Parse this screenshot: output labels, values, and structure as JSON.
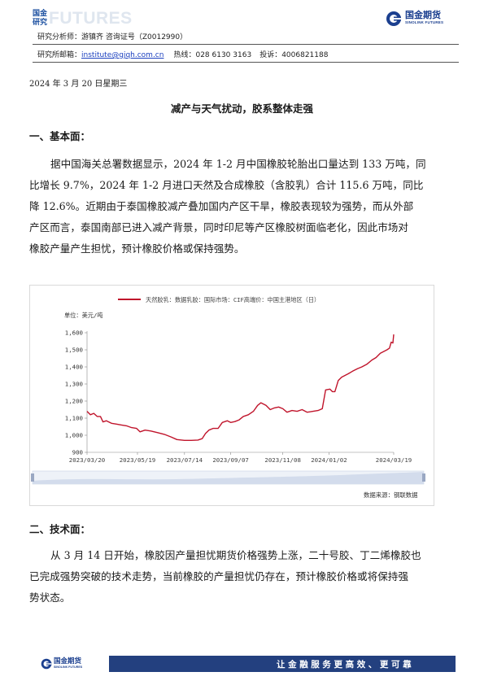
{
  "header": {
    "left_logo_cn": "国金研究",
    "left_logo_en": "FUTURES",
    "right_logo_cn": "国金期货",
    "right_logo_en": "SINOLINK FUTURES",
    "analyst": "研究分析师：游镇齐 咨询证号（Z0012990）",
    "contact_label": "研究所邮箱：",
    "email": "institute@gjqh.com.cn",
    "hotline": "热线：028 6130 3163",
    "complaint": "投诉：4006821188"
  },
  "report_date": "2024 年 3 月 20 日星期三",
  "title": "减产与天气扰动，胶系整体走强",
  "section1": {
    "heading": "一、基本面：",
    "lines": [
      "据中国海关总署数据显示，2024 年 1-2 月中国橡胶轮胎出口量达到 133 万吨，同",
      "比增长 9.7%，2024 年 1-2 月进口天然及合成橡胶（含胶乳）合计 115.6 万吨，同比",
      "降 12.6%。近期由于泰国橡胶减产叠加国内产区干旱，橡胶表现较为强势，而从外部",
      "产区而言，泰国南部已进入减产背景，同时印尼等产区橡胶树面临老化，因此市场对",
      "橡胶产量产生担忧，预计橡胶价格或保持强势。"
    ]
  },
  "chart_data": {
    "type": "line",
    "series": [
      {
        "name": "天然胶乳：数据乳胶：国际市场：CIF高端价：中国主港地区（日）",
        "color": "#c0142b",
        "points": [
          [
            "2023-03-20",
            1140
          ],
          [
            "2023-03-24",
            1120
          ],
          [
            "2023-03-28",
            1128
          ],
          [
            "2023-04-01",
            1110
          ],
          [
            "2023-04-05",
            1110
          ],
          [
            "2023-04-08",
            1078
          ],
          [
            "2023-04-12",
            1085
          ],
          [
            "2023-04-18",
            1070
          ],
          [
            "2023-04-24",
            1065
          ],
          [
            "2023-04-30",
            1060
          ],
          [
            "2023-05-06",
            1055
          ],
          [
            "2023-05-12",
            1045
          ],
          [
            "2023-05-18",
            1040
          ],
          [
            "2023-05-22",
            1020
          ],
          [
            "2023-05-28",
            1030
          ],
          [
            "2023-06-04",
            1025
          ],
          [
            "2023-06-12",
            1015
          ],
          [
            "2023-06-20",
            1005
          ],
          [
            "2023-06-28",
            990
          ],
          [
            "2023-07-05",
            975
          ],
          [
            "2023-07-14",
            970
          ],
          [
            "2023-07-22",
            970
          ],
          [
            "2023-07-30",
            972
          ],
          [
            "2023-08-04",
            980
          ],
          [
            "2023-08-08",
            1010
          ],
          [
            "2023-08-12",
            1030
          ],
          [
            "2023-08-17",
            1040
          ],
          [
            "2023-08-23",
            1040
          ],
          [
            "2023-08-28",
            1075
          ],
          [
            "2023-09-03",
            1085
          ],
          [
            "2023-09-07",
            1075
          ],
          [
            "2023-09-12",
            1080
          ],
          [
            "2023-09-17",
            1090
          ],
          [
            "2023-09-22",
            1110
          ],
          [
            "2023-09-28",
            1120
          ],
          [
            "2023-10-04",
            1140
          ],
          [
            "2023-10-09",
            1175
          ],
          [
            "2023-10-13",
            1190
          ],
          [
            "2023-10-19",
            1175
          ],
          [
            "2023-10-24",
            1150
          ],
          [
            "2023-10-29",
            1160
          ],
          [
            "2023-11-03",
            1165
          ],
          [
            "2023-11-08",
            1155
          ],
          [
            "2023-11-13",
            1135
          ],
          [
            "2023-11-19",
            1145
          ],
          [
            "2023-11-25",
            1140
          ],
          [
            "2023-12-01",
            1150
          ],
          [
            "2023-12-07",
            1135
          ],
          [
            "2023-12-14",
            1140
          ],
          [
            "2023-12-20",
            1145
          ],
          [
            "2023-12-25",
            1155
          ],
          [
            "2023-12-29",
            1265
          ],
          [
            "2024-01-03",
            1270
          ],
          [
            "2024-01-06",
            1255
          ],
          [
            "2024-01-09",
            1255
          ],
          [
            "2024-01-13",
            1320
          ],
          [
            "2024-01-17",
            1340
          ],
          [
            "2024-01-21",
            1350
          ],
          [
            "2024-01-25",
            1360
          ],
          [
            "2024-01-30",
            1375
          ],
          [
            "2024-02-05",
            1390
          ],
          [
            "2024-02-10",
            1400
          ],
          [
            "2024-02-16",
            1415
          ],
          [
            "2024-02-22",
            1440
          ],
          [
            "2024-02-27",
            1455
          ],
          [
            "2024-03-03",
            1480
          ],
          [
            "2024-03-07",
            1490
          ],
          [
            "2024-03-11",
            1500
          ],
          [
            "2024-03-14",
            1510
          ],
          [
            "2024-03-16",
            1545
          ],
          [
            "2024-03-18",
            1540
          ],
          [
            "2024-03-19",
            1590
          ]
        ]
      }
    ],
    "unit_label": "单位：美元/吨",
    "ylim": [
      900,
      1600
    ],
    "yticks": [
      900,
      1000,
      1100,
      1200,
      1300,
      1400,
      1500,
      1600
    ],
    "ytick_labels": [
      "900",
      "1,000",
      "1,100",
      "1,200",
      "1,300",
      "1,400",
      "1,500",
      "1,600"
    ],
    "xlim": [
      "2023-03-20",
      "2024-03-19"
    ],
    "xticks": [
      "2023-03-20",
      "2023-05-19",
      "2023-07-14",
      "2023-09-07",
      "2023-11-08",
      "2024-01-02",
      "2024-03-19"
    ],
    "xtick_labels": [
      "2023/03/20",
      "2023/05/19",
      "2023/07/14",
      "2023/09/07",
      "2023/11/08",
      "2024/01/02",
      "2024/03/19"
    ],
    "grid": false,
    "legend_position": "top",
    "source": "数据来源：钢联数据"
  },
  "section2": {
    "heading": "二、技术面：",
    "lines": [
      "从 3 月 14 日开始，橡胶因产量担忧期货价格强势上涨，二十号胶、丁二烯橡胶也",
      "已完成强势突破的技术走势，当前橡胶的产量担忧仍存在，预计橡胶价格或将保持强",
      "势状态。"
    ]
  },
  "footer": {
    "logo_cn": "国金期货",
    "logo_en": "SINOLINK FUTURES",
    "slogan": "让金融服务更高效、更可靠"
  },
  "colors": {
    "brand_blue": "#23407f",
    "line_red": "#c0142b",
    "link_blue": "#1a3fbf"
  }
}
